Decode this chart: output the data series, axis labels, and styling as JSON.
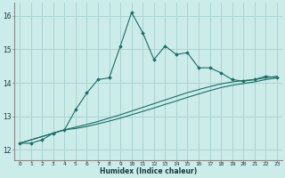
{
  "title": "",
  "xlabel": "Humidex (Indice chaleur)",
  "ylabel": "",
  "bg_color": "#ccecea",
  "grid_color": "#aad4d2",
  "line_color": "#1a6e64",
  "x_ticks": [
    0,
    1,
    2,
    3,
    4,
    5,
    6,
    7,
    8,
    9,
    10,
    11,
    12,
    13,
    14,
    15,
    16,
    17,
    18,
    19,
    20,
    21,
    22,
    23
  ],
  "y_ticks": [
    12,
    13,
    14,
    15,
    16
  ],
  "ylim": [
    11.7,
    16.4
  ],
  "xlim": [
    -0.5,
    23.5
  ],
  "series1_x": [
    0,
    1,
    2,
    3,
    4,
    5,
    6,
    7,
    8,
    9,
    10,
    11,
    12,
    13,
    14,
    15,
    16,
    17,
    18,
    19,
    20,
    21,
    22,
    23
  ],
  "series1_y": [
    12.2,
    12.2,
    12.3,
    12.5,
    12.6,
    13.2,
    13.7,
    14.1,
    14.15,
    15.1,
    16.1,
    15.5,
    14.7,
    15.1,
    14.85,
    14.9,
    14.45,
    14.45,
    14.3,
    14.1,
    14.05,
    14.1,
    14.2,
    14.15
  ],
  "series2_x": [
    0,
    4,
    5,
    6,
    7,
    8,
    9,
    10,
    11,
    12,
    13,
    14,
    15,
    16,
    17,
    18,
    19,
    20,
    21,
    22,
    23
  ],
  "series2_y": [
    12.2,
    12.6,
    12.68,
    12.76,
    12.85,
    12.95,
    13.05,
    13.16,
    13.27,
    13.38,
    13.49,
    13.6,
    13.71,
    13.8,
    13.89,
    13.97,
    14.03,
    14.07,
    14.1,
    14.15,
    14.2
  ],
  "series3_x": [
    0,
    4,
    5,
    6,
    7,
    8,
    9,
    10,
    11,
    12,
    13,
    14,
    15,
    16,
    17,
    18,
    19,
    20,
    21,
    22,
    23
  ],
  "series3_y": [
    12.2,
    12.6,
    12.64,
    12.7,
    12.78,
    12.86,
    12.95,
    13.05,
    13.15,
    13.25,
    13.36,
    13.46,
    13.57,
    13.67,
    13.77,
    13.86,
    13.93,
    13.98,
    14.03,
    14.1,
    14.15
  ]
}
